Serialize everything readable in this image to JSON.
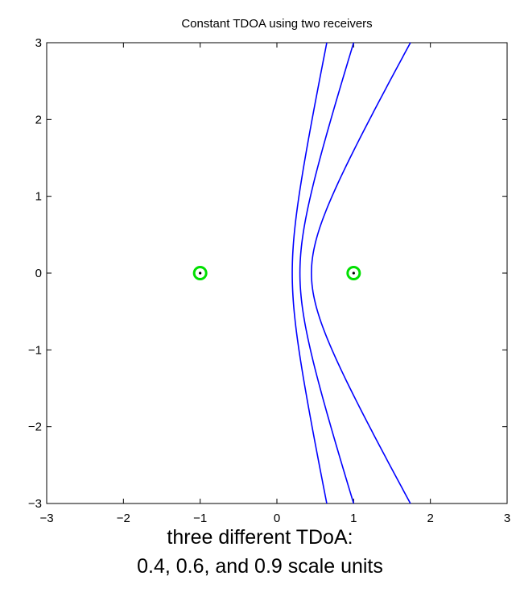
{
  "chart_data": {
    "type": "line",
    "title": "Constant TDOA using two receivers",
    "xlabel": "",
    "ylabel": "",
    "xlim": [
      -3,
      3
    ],
    "ylim": [
      -3,
      3
    ],
    "xticks": [
      -3,
      -2,
      -1,
      0,
      1,
      2,
      3
    ],
    "yticks": [
      -3,
      -2,
      -1,
      0,
      1,
      2,
      3
    ],
    "grid": false,
    "receivers": [
      {
        "x": -1,
        "y": 0
      },
      {
        "x": 1,
        "y": 0
      }
    ],
    "receiver_color": "#00e000",
    "curve_color": "#0000ff",
    "series": [
      {
        "tdoa": 0.6,
        "values_desc": "hyperbola branch",
        "x_at_y0": 0.2,
        "x_at_y3": 0.65
      },
      {
        "tdoa": 0.4,
        "values_desc": "hyperbola branch",
        "x_at_y0": 0.3,
        "x_at_y3": 1.0
      },
      {
        "tdoa": 0.9,
        "values_desc": "hyperbola branch",
        "x_at_y0": 0.45,
        "x_at_y3": 1.74
      }
    ]
  },
  "caption": {
    "line1": "three different TDoA:",
    "line2": "0.4, 0.6, and 0.9 scale units"
  }
}
